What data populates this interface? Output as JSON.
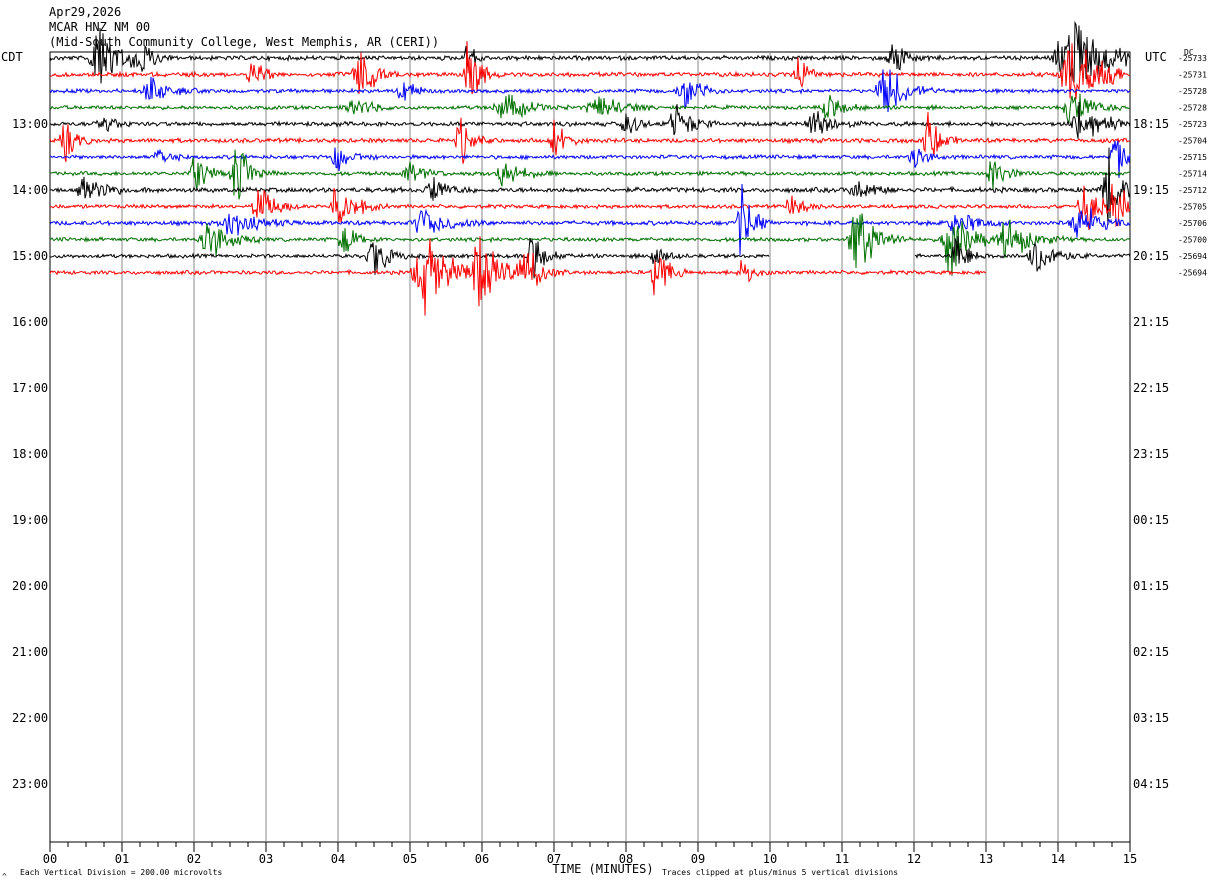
{
  "header": {
    "date": "Apr29,2026",
    "station": "MCAR HNZ NM 00",
    "location": "(Mid-South Community College, West Memphis, AR (CERI))"
  },
  "left_zone_label": "CDT",
  "right_zone_label": "UTC",
  "dc_label": "DC",
  "footer": {
    "scale_note": "Each Vertical Division =  200.00 microvolts",
    "corner_mark": "^",
    "clip_note": "Traces clipped at plus/minus 5 vertical divisions"
  },
  "colors": {
    "trace_cycle": [
      "#000000",
      "#ff0000",
      "#0000ff",
      "#007000"
    ],
    "grid": "#888888"
  },
  "chart_data": {
    "type": "line",
    "subtype": "helicorder",
    "xlabel": "TIME (MINUTES)",
    "xlim": [
      0,
      15
    ],
    "x_ticks": [
      "00",
      "01",
      "02",
      "03",
      "04",
      "05",
      "06",
      "07",
      "08",
      "09",
      "10",
      "11",
      "12",
      "13",
      "14",
      "15"
    ],
    "minor_tick_step_min": 0.25,
    "rows_per_hour": 4,
    "left_hour_labels": [
      "13:00",
      "14:00",
      "15:00",
      "16:00",
      "17:00",
      "18:00",
      "19:00",
      "20:00",
      "21:00",
      "22:00",
      "23:00"
    ],
    "right_hour_labels": [
      "18:15",
      "19:15",
      "20:15",
      "21:15",
      "22:15",
      "23:15",
      "00:15",
      "01:15",
      "02:15",
      "03:15",
      "04:15"
    ],
    "trace_rows": [
      {
        "dc": "-25733",
        "end_min": 15,
        "noise": 0.9,
        "events": [
          {
            "t": 0.7,
            "amp": 5,
            "dur": 0.6
          },
          {
            "t": 1.3,
            "amp": 2,
            "dur": 0.3
          },
          {
            "t": 5.8,
            "amp": 3,
            "dur": 0.2
          },
          {
            "t": 11.7,
            "amp": 3,
            "dur": 0.3
          },
          {
            "t": 14.2,
            "amp": 5,
            "dur": 1.0
          }
        ]
      },
      {
        "dc": "-25731",
        "end_min": 15,
        "noise": 0.9,
        "events": [
          {
            "t": 2.8,
            "amp": 3,
            "dur": 0.3
          },
          {
            "t": 4.3,
            "amp": 4,
            "dur": 0.4
          },
          {
            "t": 5.8,
            "amp": 5,
            "dur": 0.3
          },
          {
            "t": 10.4,
            "amp": 2,
            "dur": 0.3
          },
          {
            "t": 14.2,
            "amp": 5,
            "dur": 0.8
          }
        ]
      },
      {
        "dc": "-25728",
        "end_min": 15,
        "noise": 0.8,
        "events": [
          {
            "t": 1.4,
            "amp": 2,
            "dur": 0.5
          },
          {
            "t": 4.9,
            "amp": 2,
            "dur": 0.3
          },
          {
            "t": 8.8,
            "amp": 3,
            "dur": 0.4
          },
          {
            "t": 11.6,
            "amp": 4,
            "dur": 0.5
          }
        ]
      },
      {
        "dc": "-25728",
        "end_min": 15,
        "noise": 0.8,
        "events": [
          {
            "t": 4.2,
            "amp": 2,
            "dur": 0.4
          },
          {
            "t": 6.3,
            "amp": 2,
            "dur": 0.6
          },
          {
            "t": 7.6,
            "amp": 2,
            "dur": 0.6
          },
          {
            "t": 10.8,
            "amp": 2,
            "dur": 0.4
          },
          {
            "t": 14.2,
            "amp": 3,
            "dur": 0.5
          }
        ]
      },
      {
        "dc": "-25723",
        "end_min": 15,
        "noise": 0.9,
        "events": [
          {
            "t": 0.7,
            "amp": 2,
            "dur": 0.3
          },
          {
            "t": 8.0,
            "amp": 2,
            "dur": 0.3
          },
          {
            "t": 8.7,
            "amp": 3,
            "dur": 0.4
          },
          {
            "t": 10.6,
            "amp": 2,
            "dur": 0.5
          },
          {
            "t": 14.3,
            "amp": 3,
            "dur": 0.6
          }
        ]
      },
      {
        "dc": "-25704",
        "end_min": 15,
        "noise": 0.9,
        "events": [
          {
            "t": 0.2,
            "amp": 3,
            "dur": 0.3
          },
          {
            "t": 5.7,
            "amp": 3,
            "dur": 0.3
          },
          {
            "t": 7.0,
            "amp": 3,
            "dur": 0.3
          },
          {
            "t": 12.2,
            "amp": 4,
            "dur": 0.3
          }
        ]
      },
      {
        "dc": "-25715",
        "end_min": 15,
        "noise": 0.8,
        "events": [
          {
            "t": 1.5,
            "amp": 2,
            "dur": 0.3
          },
          {
            "t": 4.0,
            "amp": 2,
            "dur": 0.4
          },
          {
            "t": 12.0,
            "amp": 2,
            "dur": 0.3
          },
          {
            "t": 14.8,
            "amp": 3,
            "dur": 0.3
          }
        ]
      },
      {
        "dc": "-25714",
        "end_min": 15,
        "noise": 0.8,
        "events": [
          {
            "t": 2.0,
            "amp": 4,
            "dur": 0.3
          },
          {
            "t": 2.6,
            "amp": 4,
            "dur": 0.4
          },
          {
            "t": 5.0,
            "amp": 2,
            "dur": 0.4
          },
          {
            "t": 6.3,
            "amp": 2,
            "dur": 0.5
          },
          {
            "t": 13.1,
            "amp": 2,
            "dur": 0.4
          }
        ]
      },
      {
        "dc": "-25712",
        "end_min": 15,
        "noise": 1.0,
        "events": [
          {
            "t": 0.5,
            "amp": 2,
            "dur": 0.5
          },
          {
            "t": 5.3,
            "amp": 2,
            "dur": 0.4
          },
          {
            "t": 11.2,
            "amp": 2,
            "dur": 0.4
          },
          {
            "t": 14.7,
            "amp": 5,
            "dur": 0.4
          }
        ]
      },
      {
        "dc": "-25705",
        "end_min": 15,
        "noise": 0.8,
        "events": [
          {
            "t": 2.9,
            "amp": 3,
            "dur": 0.4
          },
          {
            "t": 4.0,
            "amp": 3,
            "dur": 0.5
          },
          {
            "t": 10.3,
            "amp": 2,
            "dur": 0.3
          },
          {
            "t": 14.4,
            "amp": 3,
            "dur": 0.5
          },
          {
            "t": 14.8,
            "amp": 5,
            "dur": 0.3
          }
        ]
      },
      {
        "dc": "-25706",
        "end_min": 15,
        "noise": 0.9,
        "events": [
          {
            "t": 2.5,
            "amp": 2,
            "dur": 0.6
          },
          {
            "t": 5.2,
            "amp": 2,
            "dur": 0.7
          },
          {
            "t": 9.6,
            "amp": 5,
            "dur": 0.3
          },
          {
            "t": 12.6,
            "amp": 2,
            "dur": 0.5
          },
          {
            "t": 14.3,
            "amp": 3,
            "dur": 0.5
          }
        ]
      },
      {
        "dc": "-25700",
        "end_min": 15,
        "noise": 0.8,
        "events": [
          {
            "t": 2.2,
            "amp": 3,
            "dur": 0.5
          },
          {
            "t": 4.1,
            "amp": 2,
            "dur": 0.4
          },
          {
            "t": 11.2,
            "amp": 5,
            "dur": 0.5
          },
          {
            "t": 12.5,
            "amp": 5,
            "dur": 0.5
          },
          {
            "t": 13.3,
            "amp": 3,
            "dur": 0.6
          }
        ]
      },
      {
        "dc": "-25694",
        "end_min": 15,
        "noise": 0.8,
        "events": [
          {
            "t": 4.5,
            "amp": 3,
            "dur": 0.4
          },
          {
            "t": 6.7,
            "amp": 4,
            "dur": 0.3
          },
          {
            "t": 8.4,
            "amp": 2,
            "dur": 0.3
          },
          {
            "t": 12.6,
            "amp": 3,
            "dur": 0.3
          },
          {
            "t": 13.7,
            "amp": 3,
            "dur": 0.5
          }
        ],
        "gaps": [
          [
            10.0,
            12.0
          ]
        ]
      },
      {
        "dc": "-25694",
        "end_min": 13.0,
        "noise": 0.8,
        "events": [
          {
            "t": 5.2,
            "amp": 5,
            "dur": 0.7
          },
          {
            "t": 6.0,
            "amp": 5,
            "dur": 0.6
          },
          {
            "t": 6.6,
            "amp": 4,
            "dur": 0.4
          },
          {
            "t": 8.4,
            "amp": 5,
            "dur": 0.3
          },
          {
            "t": 9.6,
            "amp": 2,
            "dur": 0.3
          }
        ]
      }
    ]
  }
}
